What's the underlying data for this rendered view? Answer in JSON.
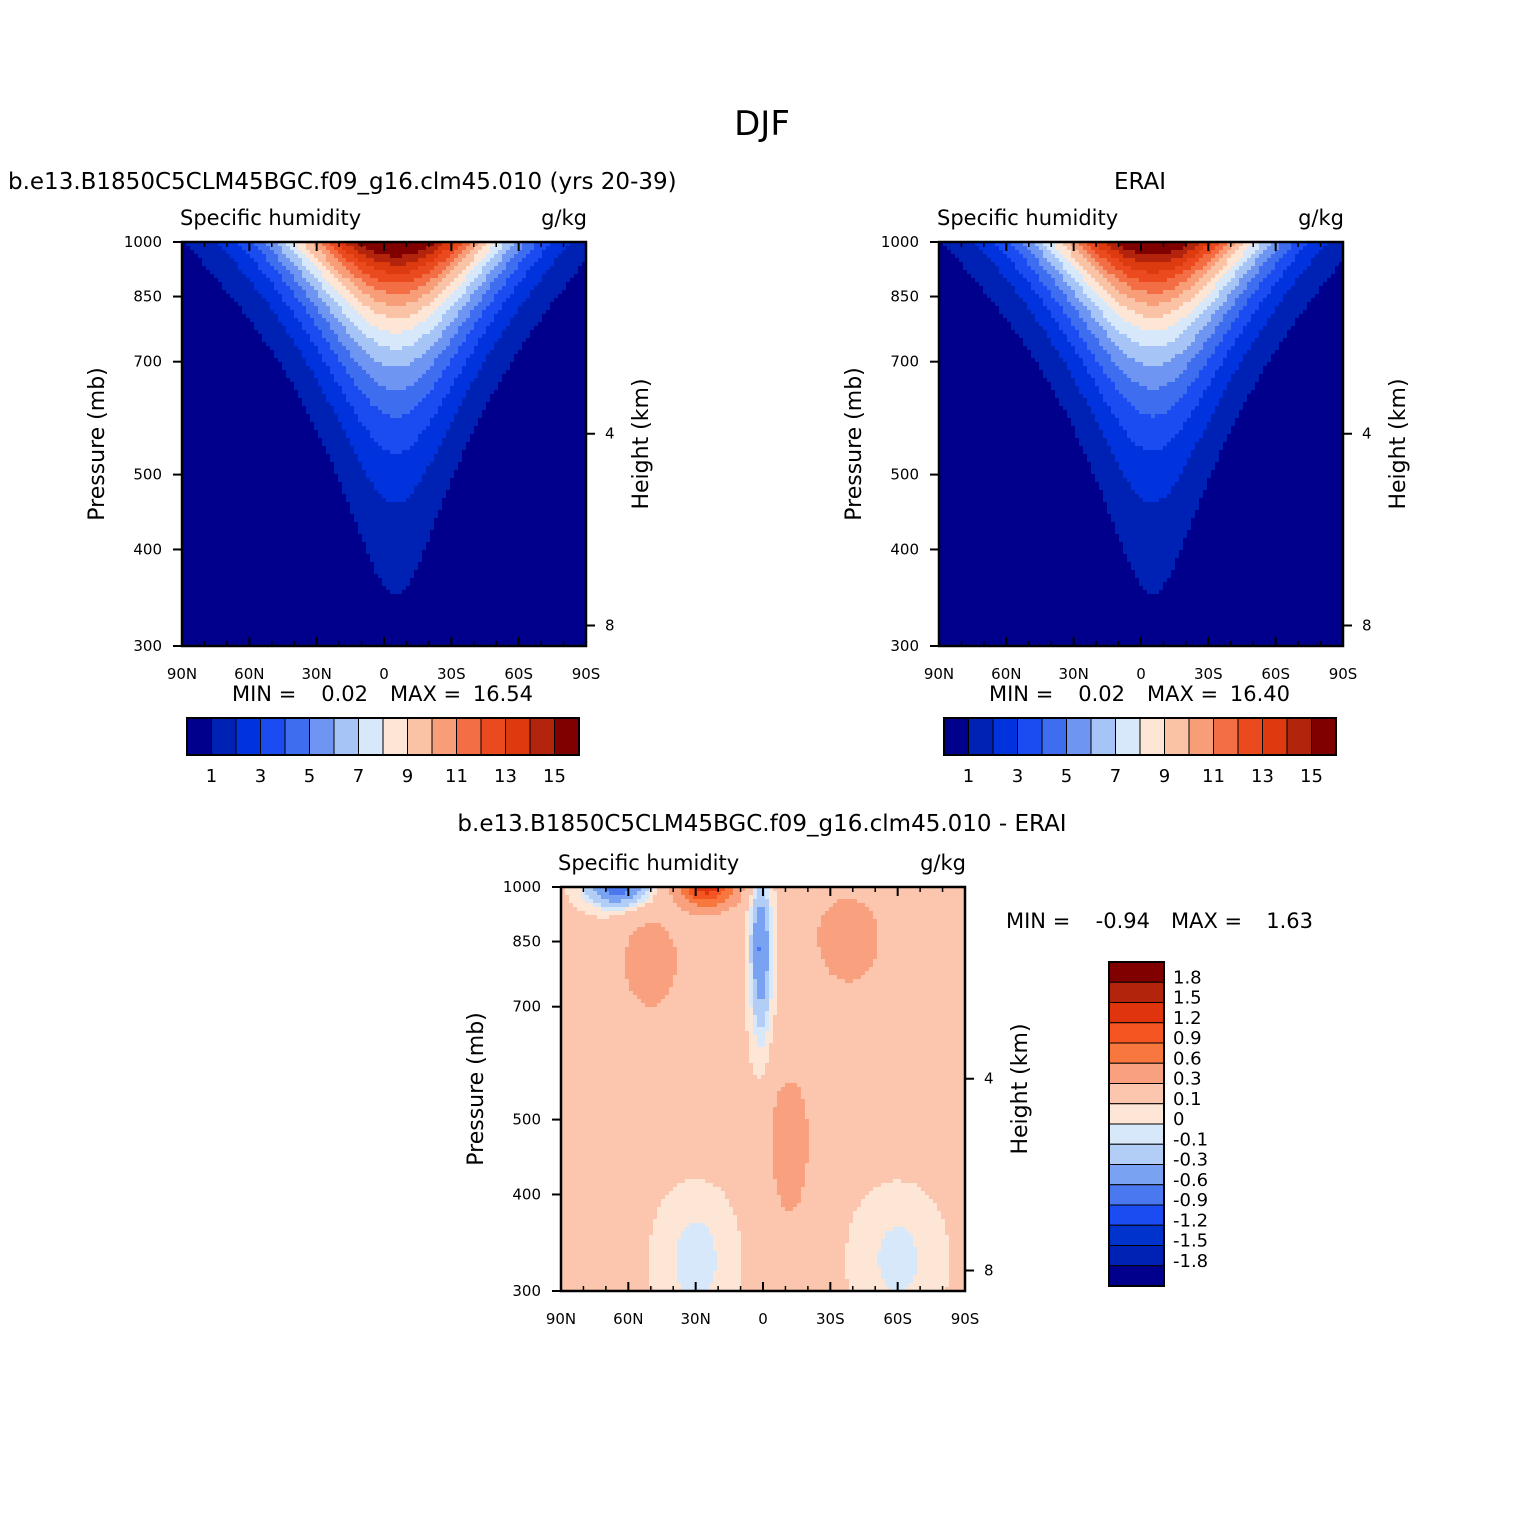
{
  "figure": {
    "title": "DJF"
  },
  "panels": {
    "model": {
      "title": "b.e13.B1850C5CLM45BGC.f09_g16.clm45.010 (yrs 20-39)",
      "left_label": "Specific humidity",
      "right_label": "g/kg",
      "min_label": "MIN =",
      "min_value": "0.02",
      "max_label": "MAX =",
      "max_value": "16.54"
    },
    "obs": {
      "title": "ERAI",
      "left_label": "Specific humidity",
      "right_label": "g/kg",
      "min_label": "MIN =",
      "min_value": "0.02",
      "max_label": "MAX =",
      "max_value": "16.40"
    },
    "diff": {
      "title": "b.e13.B1850C5CLM45BGC.f09_g16.clm45.010 - ERAI",
      "left_label": "Specific humidity",
      "right_label": "g/kg",
      "min_label": "MIN =",
      "min_value": "-0.94",
      "max_label": "MAX =",
      "max_value": "1.63"
    }
  },
  "axes": {
    "ylabel": "Pressure (mb)",
    "y2label": "Height (km)"
  },
  "chart_data": [
    {
      "type": "heatmap",
      "name": "model",
      "title": "b.e13.B1850C5CLM45BGC.f09_g16.clm45.010 (yrs 20-39)",
      "subtitle_left": "Specific humidity",
      "subtitle_right": "g/kg",
      "xlabel": "",
      "ylabel": "Pressure (mb)",
      "y2label": "Height (km)",
      "x_ticks": [
        "90N",
        "60N",
        "30N",
        "0",
        "30S",
        "60S",
        "90S"
      ],
      "y_ticks": [
        300,
        400,
        500,
        700,
        850,
        1000
      ],
      "y2_ticks": [
        8,
        4
      ],
      "y_scale": "log",
      "ylim": [
        1000,
        300
      ],
      "xlim": [
        90,
        -90
      ],
      "peak": {
        "lat": -5,
        "pressure": 1000,
        "value": 16.54
      },
      "contour_levels": [
        1,
        2,
        3,
        4,
        5,
        6,
        7,
        8,
        9,
        10,
        11,
        12,
        13,
        14,
        15
      ],
      "colorbar_labels": [
        "1",
        "3",
        "5",
        "7",
        "9",
        "11",
        "13",
        "15"
      ],
      "min": 0.02,
      "max": 16.54
    },
    {
      "type": "heatmap",
      "name": "obs",
      "title": "ERAI",
      "subtitle_left": "Specific humidity",
      "subtitle_right": "g/kg",
      "xlabel": "",
      "ylabel": "Pressure (mb)",
      "y2label": "Height (km)",
      "x_ticks": [
        "90N",
        "60N",
        "30N",
        "0",
        "30S",
        "60S",
        "90S"
      ],
      "y_ticks": [
        300,
        400,
        500,
        700,
        850,
        1000
      ],
      "y2_ticks": [
        8,
        4
      ],
      "y_scale": "log",
      "ylim": [
        1000,
        300
      ],
      "xlim": [
        90,
        -90
      ],
      "peak": {
        "lat": -5,
        "pressure": 1000,
        "value": 16.4
      },
      "contour_levels": [
        1,
        2,
        3,
        4,
        5,
        6,
        7,
        8,
        9,
        10,
        11,
        12,
        13,
        14,
        15
      ],
      "colorbar_labels": [
        "1",
        "3",
        "5",
        "7",
        "9",
        "11",
        "13",
        "15"
      ],
      "min": 0.02,
      "max": 16.4
    },
    {
      "type": "heatmap",
      "name": "diff",
      "title": "b.e13.B1850C5CLM45BGC.f09_g16.clm45.010 - ERAI",
      "subtitle_left": "Specific humidity",
      "subtitle_right": "g/kg",
      "xlabel": "",
      "ylabel": "Pressure (mb)",
      "y2label": "Height (km)",
      "x_ticks": [
        "90N",
        "60N",
        "30N",
        "0",
        "30S",
        "60S",
        "90S"
      ],
      "y_ticks": [
        300,
        400,
        500,
        700,
        850,
        1000
      ],
      "y2_ticks": [
        8,
        4
      ],
      "y_scale": "log",
      "ylim": [
        1000,
        300
      ],
      "xlim": [
        90,
        -90
      ],
      "contour_levels": [
        -1.8,
        -1.5,
        -1.2,
        -0.9,
        -0.6,
        -0.3,
        -0.1,
        0,
        0.1,
        0.3,
        0.6,
        0.9,
        1.2,
        1.5,
        1.8
      ],
      "colorbar_labels": [
        "1.8",
        "1.5",
        "1.2",
        "0.9",
        "0.6",
        "0.3",
        "0.1",
        "0",
        "-0.1",
        "-0.3",
        "-0.6",
        "-0.9",
        "-1.2",
        "-1.5",
        "-1.8"
      ],
      "min": -0.94,
      "max": 1.63
    }
  ],
  "colors": {
    "humidity": [
      "#00008c",
      "#0022b4",
      "#0033dd",
      "#1a4cf2",
      "#3f6df0",
      "#6e95f2",
      "#a6c4f5",
      "#d8e8fb",
      "#fde6d6",
      "#fbc3a6",
      "#f79e78",
      "#f36d45",
      "#ea4a1e",
      "#dd3a10",
      "#b3240c",
      "#800000"
    ],
    "diff": [
      "#800000",
      "#b3240c",
      "#e0340e",
      "#f55520",
      "#f7773f",
      "#f9a07e",
      "#fbc6ad",
      "#fde6d6",
      "#d8e8fb",
      "#b2cdf6",
      "#7aa2f2",
      "#4a78ee",
      "#1a4cf2",
      "#0033cc",
      "#0022b4",
      "#00008c"
    ]
  }
}
